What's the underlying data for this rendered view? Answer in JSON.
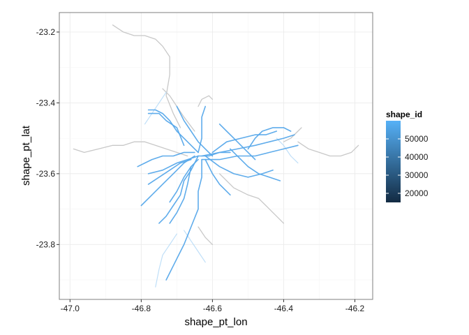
{
  "chart_data": {
    "type": "line",
    "title": "",
    "xlabel": "shape_pt_lon",
    "ylabel": "shape_pt_lat",
    "xlim": [
      -47.03,
      -46.15
    ],
    "ylim": [
      -23.955,
      -23.145
    ],
    "x_ticks": [
      -47.0,
      -46.8,
      -46.6,
      -46.4,
      -46.2
    ],
    "x_tick_labels": [
      "-47.0",
      "-46.8",
      "-46.6",
      "-46.4",
      "-46.2"
    ],
    "y_ticks": [
      -23.2,
      -23.4,
      -23.6,
      -23.8
    ],
    "y_tick_labels": [
      "-23.2",
      "-23.4",
      "-23.6",
      "-23.8"
    ],
    "grid": true,
    "legend": {
      "title": "shape_id",
      "position": "right",
      "type": "colorbar",
      "min": 15000,
      "max": 60000,
      "breaks": [
        20000,
        30000,
        40000,
        50000
      ],
      "break_labels": [
        "20000",
        "30000",
        "40000",
        "50000"
      ],
      "color_low": "#132b43",
      "color_high": "#56b1f7"
    },
    "colors": {
      "peripheral_routes": "#c8c8c8",
      "dense_routes": "#56a8ea",
      "light_routes": "#b8dcf7",
      "dark_routes": "#3f8fcf"
    },
    "series": [
      {
        "color_group": "grey",
        "x": [
          -46.88,
          -46.85,
          -46.82,
          -46.79,
          -46.76,
          -46.74,
          -46.72,
          -46.72,
          -46.73,
          -46.71,
          -46.69
        ],
        "y": [
          -23.18,
          -23.2,
          -23.21,
          -23.21,
          -23.22,
          -23.24,
          -23.27,
          -23.32,
          -23.38,
          -23.43,
          -23.47
        ]
      },
      {
        "color_group": "grey",
        "x": [
          -46.99,
          -46.96,
          -46.92,
          -46.88,
          -46.85,
          -46.82,
          -46.79,
          -46.76,
          -46.73,
          -46.7,
          -46.67
        ],
        "y": [
          -23.53,
          -23.54,
          -23.53,
          -23.52,
          -23.52,
          -23.51,
          -23.51,
          -23.52,
          -23.53,
          -23.54,
          -23.55
        ]
      },
      {
        "color_group": "grey",
        "x": [
          -46.36,
          -46.33,
          -46.3,
          -46.27,
          -46.24,
          -46.21,
          -46.19
        ],
        "y": [
          -23.51,
          -23.53,
          -23.54,
          -23.55,
          -23.55,
          -23.54,
          -23.52
        ]
      },
      {
        "color_group": "grey",
        "x": [
          -46.4,
          -46.38,
          -46.36,
          -46.35
        ],
        "y": [
          -23.51,
          -23.5,
          -23.48,
          -23.47
        ]
      },
      {
        "color_group": "grey",
        "x": [
          -46.58,
          -46.54,
          -46.5,
          -46.47,
          -46.45,
          -46.43,
          -46.41,
          -46.4
        ],
        "y": [
          -23.6,
          -23.64,
          -23.66,
          -23.67,
          -23.69,
          -23.71,
          -23.73,
          -23.74
        ]
      },
      {
        "color_group": "grey",
        "x": [
          -46.64,
          -46.63,
          -46.61,
          -46.6
        ],
        "y": [
          -23.41,
          -23.39,
          -23.38,
          -23.39
        ]
      },
      {
        "color_group": "grey",
        "x": [
          -46.64,
          -46.62,
          -46.6
        ],
        "y": [
          -23.75,
          -23.78,
          -23.8
        ]
      },
      {
        "color_group": "grey",
        "x": [
          -46.74,
          -46.72,
          -46.7,
          -46.68,
          -46.65
        ],
        "y": [
          -23.36,
          -23.38,
          -23.41,
          -23.44,
          -23.48
        ]
      },
      {
        "color_group": "blue",
        "x": [
          -46.78,
          -46.74,
          -46.7,
          -46.67,
          -46.64,
          -46.61,
          -46.58,
          -46.55
        ],
        "y": [
          -23.6,
          -23.59,
          -23.57,
          -23.56,
          -23.55,
          -23.55,
          -23.54,
          -23.54
        ]
      },
      {
        "color_group": "blue",
        "x": [
          -46.63,
          -46.58,
          -46.53,
          -46.48,
          -46.44,
          -46.4,
          -46.37
        ],
        "y": [
          -23.55,
          -23.54,
          -23.53,
          -23.52,
          -23.51,
          -23.5,
          -23.49
        ]
      },
      {
        "color_group": "blue",
        "x": [
          -46.63,
          -46.58,
          -46.53,
          -46.48,
          -46.44,
          -46.4,
          -46.36
        ],
        "y": [
          -23.56,
          -23.56,
          -23.55,
          -23.55,
          -23.54,
          -23.53,
          -23.52
        ]
      },
      {
        "color_group": "blue",
        "x": [
          -46.64,
          -46.66,
          -46.68,
          -46.69,
          -46.71,
          -46.73,
          -46.75
        ],
        "y": [
          -23.55,
          -23.59,
          -23.62,
          -23.66,
          -23.69,
          -23.72,
          -23.74
        ]
      },
      {
        "color_group": "blue",
        "x": [
          -46.63,
          -46.63,
          -46.64,
          -46.64,
          -46.66,
          -46.68,
          -46.7,
          -46.71,
          -46.73
        ],
        "y": [
          -23.56,
          -23.61,
          -23.65,
          -23.7,
          -23.75,
          -23.8,
          -23.84,
          -23.86,
          -23.9
        ]
      },
      {
        "color_group": "blue",
        "x": [
          -46.64,
          -46.67,
          -46.7,
          -46.72,
          -46.74,
          -46.76,
          -46.78
        ],
        "y": [
          -23.54,
          -23.51,
          -23.48,
          -23.45,
          -23.43,
          -23.42,
          -23.42
        ]
      },
      {
        "color_group": "blue",
        "x": [
          -46.64,
          -46.63,
          -46.63,
          -46.63,
          -46.62
        ],
        "y": [
          -23.54,
          -23.5,
          -23.47,
          -23.44,
          -23.41
        ]
      },
      {
        "color_group": "blue",
        "x": [
          -46.8,
          -46.77,
          -46.74,
          -46.71,
          -46.68,
          -46.65
        ],
        "y": [
          -23.69,
          -23.66,
          -23.63,
          -23.6,
          -23.57,
          -23.55
        ]
      },
      {
        "color_group": "blue",
        "x": [
          -46.81,
          -46.79,
          -46.77,
          -46.74,
          -46.71,
          -46.68,
          -46.65
        ],
        "y": [
          -23.58,
          -23.57,
          -23.56,
          -23.55,
          -23.55,
          -23.54,
          -23.54
        ]
      },
      {
        "color_group": "blue",
        "x": [
          -46.7,
          -46.68,
          -46.66,
          -46.64,
          -46.62,
          -46.6
        ],
        "y": [
          -23.41,
          -23.45,
          -23.48,
          -23.51,
          -23.53,
          -23.55
        ]
      },
      {
        "color_group": "blue",
        "x": [
          -46.62,
          -46.58,
          -46.54,
          -46.5,
          -46.46,
          -46.43
        ],
        "y": [
          -23.55,
          -23.58,
          -23.6,
          -23.61,
          -23.6,
          -23.59
        ]
      },
      {
        "color_group": "blue",
        "x": [
          -46.6,
          -46.56,
          -46.52,
          -46.48,
          -46.45,
          -46.42
        ],
        "y": [
          -23.54,
          -23.51,
          -23.5,
          -23.49,
          -23.49,
          -23.48
        ]
      },
      {
        "color_group": "blue",
        "x": [
          -46.72,
          -46.7,
          -46.68,
          -46.66,
          -46.64
        ],
        "y": [
          -23.68,
          -23.65,
          -23.61,
          -23.58,
          -23.56
        ]
      },
      {
        "color_group": "blue",
        "x": [
          -46.78,
          -46.75,
          -46.72,
          -46.69,
          -46.66
        ],
        "y": [
          -23.63,
          -23.61,
          -23.59,
          -23.57,
          -23.56
        ]
      },
      {
        "color_group": "blue",
        "x": [
          -46.55,
          -46.52,
          -46.5,
          -46.47,
          -46.44,
          -46.41
        ],
        "y": [
          -23.53,
          -23.56,
          -23.58,
          -23.6,
          -23.61,
          -23.62
        ]
      },
      {
        "color_group": "blue",
        "x": [
          -46.68,
          -46.7,
          -46.73,
          -46.75,
          -46.78
        ],
        "y": [
          -23.52,
          -23.47,
          -23.45,
          -23.43,
          -23.43
        ]
      },
      {
        "color_group": "blue",
        "x": [
          -46.5,
          -46.48,
          -46.46,
          -46.43,
          -46.4,
          -46.38
        ],
        "y": [
          -23.53,
          -23.5,
          -23.48,
          -23.47,
          -23.47,
          -23.48
        ]
      },
      {
        "color_group": "blue",
        "x": [
          -46.66,
          -46.67,
          -46.68,
          -46.7,
          -46.72
        ],
        "y": [
          -23.58,
          -23.63,
          -23.67,
          -23.71,
          -23.74
        ]
      },
      {
        "color_group": "blue",
        "x": [
          -46.62,
          -46.6,
          -46.58,
          -46.56,
          -46.55
        ],
        "y": [
          -23.56,
          -23.6,
          -23.63,
          -23.65,
          -23.66
        ]
      },
      {
        "color_group": "blue",
        "x": [
          -46.58,
          -46.56,
          -46.54,
          -46.52,
          -46.5,
          -46.48
        ],
        "y": [
          -23.46,
          -23.48,
          -23.5,
          -23.52,
          -23.54,
          -23.56
        ]
      },
      {
        "color_group": "light",
        "x": [
          -46.7,
          -46.72,
          -46.74,
          -46.75,
          -46.76
        ],
        "y": [
          -23.77,
          -23.8,
          -23.83,
          -23.87,
          -23.92
        ]
      },
      {
        "color_group": "light",
        "x": [
          -46.73,
          -46.75,
          -46.77,
          -46.79
        ],
        "y": [
          -23.37,
          -23.4,
          -23.43,
          -23.46
        ]
      },
      {
        "color_group": "light",
        "x": [
          -46.42,
          -46.4,
          -46.38,
          -46.36
        ],
        "y": [
          -23.5,
          -23.52,
          -23.55,
          -23.57
        ]
      },
      {
        "color_group": "light",
        "x": [
          -46.68,
          -46.66,
          -46.64,
          -46.62
        ],
        "y": [
          -23.76,
          -23.79,
          -23.82,
          -23.85
        ]
      }
    ]
  }
}
